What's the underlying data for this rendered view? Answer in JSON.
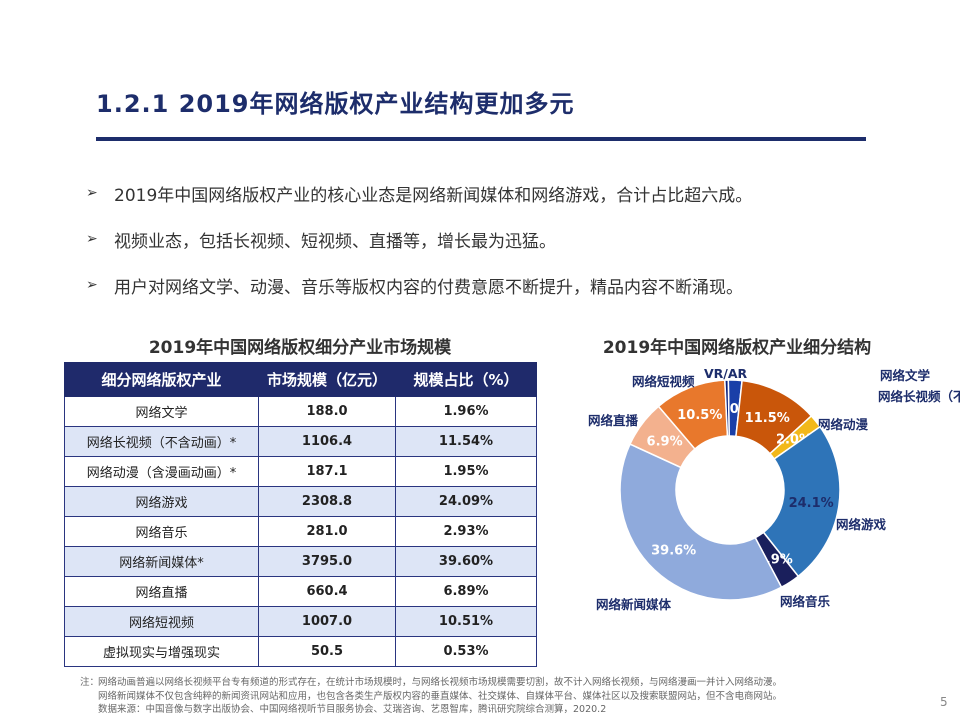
{
  "title": "1.2.1   2019年网络版权产业结构更加多元",
  "bullets": [
    "2019年中国网络版权产业的核心业态是网络新闻媒体和网络游戏，合计占比超六成。",
    "视频业态，包括长视频、短视频、直播等，增长最为迅猛。",
    "用户对网络文学、动漫、音乐等版权内容的付费意愿不断提升，精品内容不断涌现。"
  ],
  "bullet_marker": "➢",
  "table": {
    "title": "2019年中国网络版权细分产业市场规模",
    "headers": [
      "细分网络版权产业",
      "市场规模（亿元）",
      "规模占比（%）"
    ],
    "rows": [
      [
        "网络文学",
        "188.0",
        "1.96%"
      ],
      [
        "网络长视频（不含动画）*",
        "1106.4",
        "11.54%"
      ],
      [
        "网络动漫（含漫画动画）*",
        "187.1",
        "1.95%"
      ],
      [
        "网络游戏",
        "2308.8",
        "24.09%"
      ],
      [
        "网络音乐",
        "281.0",
        "2.93%"
      ],
      [
        "网络新闻媒体*",
        "3795.0",
        "39.60%"
      ],
      [
        "网络直播",
        "660.4",
        "6.89%"
      ],
      [
        "网络短视频",
        "1007.0",
        "10.51%"
      ],
      [
        "虚拟现实与增强现实",
        "50.5",
        "0.53%"
      ]
    ]
  },
  "chart_data": {
    "type": "pie",
    "donut": true,
    "title": "2019年中国网络版权产业细分结构",
    "categories": [
      "网络文学",
      "网络长视频（不含动画）",
      "网络动漫",
      "网络游戏",
      "网络音乐",
      "网络新闻媒体",
      "网络直播",
      "网络短视频",
      "VR/AR"
    ],
    "values": [
      2.0,
      11.5,
      2.0,
      24.1,
      2.9,
      39.6,
      6.9,
      10.5,
      0.5
    ],
    "value_labels": [
      "2.0%",
      "11.5%",
      "2.0%",
      "24.1%",
      "2.9%",
      "39.6%",
      "6.9%",
      "10.5%",
      ""
    ],
    "colors": [
      "#1a3fa8",
      "#c9560a",
      "#f2b81a",
      "#2e74b8",
      "#1a1f5c",
      "#8faadc",
      "#f3b18e",
      "#e8782c",
      "#0a1f7a"
    ],
    "label_colors": [
      "#ffffff",
      "#ffffff",
      "#ffffff",
      "#1d2d6b",
      "#ffffff",
      "#ffffff",
      "#ffffff",
      "#ffffff",
      "#ffffff"
    ]
  },
  "footnote": {
    "note_label": "注：",
    "note_lines": [
      "网络动画普遍以网络长视频平台专有频道的形式存在，在统计市场规模时，与网络长视频市场规模需要切割，故不计入网络长视频，与网络漫画一并计入网络动漫。",
      "网络新闻媒体不仅包含纯粹的新闻资讯网站和应用，也包含各类生产版权内容的垂直媒体、社交媒体、自媒体平台、媒体社区以及搜索联盟网站，但不含电商网站。"
    ],
    "source": "数据来源：中国音像与数字出版协会、中国网络视听节目服务协会、艾瑞咨询、艺恩智库，腾讯研究院综合测算，2020.2"
  },
  "page_number": "5"
}
